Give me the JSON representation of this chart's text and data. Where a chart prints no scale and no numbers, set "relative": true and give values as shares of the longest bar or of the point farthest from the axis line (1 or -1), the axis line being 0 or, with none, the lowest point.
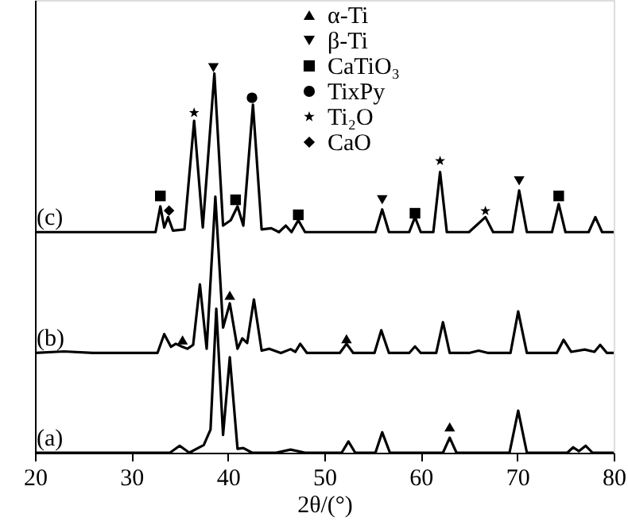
{
  "chart_data": {
    "type": "line",
    "relative": true,
    "xlabel": "2θ/(°)",
    "xlim": [
      20,
      80
    ],
    "xticks": [
      20,
      30,
      40,
      50,
      60,
      70,
      80
    ],
    "grid": false,
    "legend": "top",
    "line_style": "solid",
    "annotations": [
      "(a)",
      "(b)",
      "(c)"
    ],
    "series": [
      {
        "color": "#000000",
        "x": [
          20,
          34,
          35,
          36,
          37.5,
          38.2,
          38.8,
          39.5,
          40.2,
          41,
          41.6,
          42.5,
          45,
          46.5,
          48,
          51.8,
          52.5,
          53.2,
          55.3,
          56,
          56.8,
          62.3,
          63,
          63.7,
          69.2,
          70.1,
          71,
          75.2,
          75.8,
          76.4,
          77.1,
          77.8,
          80
        ],
        "values": [
          0,
          0,
          0.018,
          0,
          0.02,
          0.06,
          0.374,
          0.046,
          0.248,
          0.01,
          0.012,
          0,
          0,
          0.008,
          0,
          0,
          0.029,
          0,
          0,
          0.053,
          0,
          0,
          0.039,
          0,
          0,
          0.109,
          0,
          0,
          0.014,
          0.004,
          0.018,
          0,
          0
        ]
      },
      {
        "color": "#000000",
        "x": [
          20,
          23,
          26,
          32.7,
          33.4,
          34.1,
          34.6,
          35.2,
          35.8,
          36.4,
          37.1,
          37.8,
          38.7,
          39.5,
          40.2,
          41,
          41.5,
          42,
          42.7,
          43.5,
          44.3,
          45.5,
          46.5,
          47,
          47.5,
          48.2,
          51.6,
          52.3,
          53,
          55.2,
          55.9,
          56.7,
          58.8,
          59.4,
          60,
          61.6,
          62.3,
          63,
          65,
          66,
          67,
          69.3,
          70.1,
          71,
          74.1,
          74.8,
          75.6,
          77,
          78,
          78.6,
          79.3,
          80
        ],
        "values": [
          0.259,
          0.263,
          0.259,
          0.259,
          0.308,
          0.275,
          0.283,
          0.276,
          0.27,
          0.28,
          0.437,
          0.27,
          0.665,
          0.325,
          0.388,
          0.27,
          0.297,
          0.285,
          0.398,
          0.265,
          0.27,
          0.259,
          0.269,
          0.262,
          0.283,
          0.259,
          0.259,
          0.283,
          0.259,
          0.259,
          0.318,
          0.259,
          0.259,
          0.276,
          0.259,
          0.259,
          0.339,
          0.259,
          0.259,
          0.265,
          0.259,
          0.259,
          0.367,
          0.259,
          0.259,
          0.293,
          0.262,
          0.268,
          0.262,
          0.28,
          0.259,
          0.259
        ]
      },
      {
        "color": "#000000",
        "x": [
          20,
          32.5,
          33,
          33.4,
          33.8,
          34.3,
          35.5,
          36.5,
          37.4,
          38.6,
          39.5,
          40.3,
          41,
          41.6,
          42.6,
          43.5,
          44.5,
          45.3,
          46,
          46.6,
          47.3,
          48,
          55.3,
          56,
          56.7,
          58.8,
          59.4,
          60,
          61.3,
          62,
          62.7,
          65,
          66.7,
          67.5,
          69.5,
          70.2,
          71,
          73.6,
          74.3,
          75,
          77.4,
          78.1,
          78.8,
          80
        ],
        "values": [
          0.573,
          0.573,
          0.64,
          0.585,
          0.612,
          0.577,
          0.58,
          0.862,
          0.585,
          0.985,
          0.59,
          0.604,
          0.64,
          0.59,
          0.904,
          0.58,
          0.583,
          0.573,
          0.59,
          0.573,
          0.604,
          0.573,
          0.573,
          0.632,
          0.573,
          0.573,
          0.612,
          0.573,
          0.573,
          0.729,
          0.573,
          0.573,
          0.612,
          0.573,
          0.573,
          0.681,
          0.573,
          0.573,
          0.646,
          0.573,
          0.573,
          0.612,
          0.573,
          0.573
        ]
      },
      {
        "type": "scatter",
        "name": "α-Ti",
        "marker": "triangle",
        "color": "#000000",
        "x": [
          35.3,
          40.2,
          52.3,
          63.0
        ],
        "values": [
          0.293,
          0.409,
          0.296,
          0.067
        ]
      },
      {
        "type": "scatter",
        "name": "β-Ti",
        "marker": "triangle_down",
        "color": "#000000",
        "x": [
          38.5,
          56.0,
          70.2
        ],
        "values": [
          1.0,
          0.657,
          0.706
        ]
      },
      {
        "type": "scatter",
        "name": "CaTiO₃",
        "marker": "square",
        "color": "#000000",
        "x": [
          33.0,
          40.8,
          47.3,
          59.4,
          74.3
        ],
        "values": [
          0.667,
          0.657,
          0.618,
          0.622,
          0.667
        ]
      },
      {
        "type": "scatter",
        "name": "TixPy",
        "marker": "circle",
        "color": "#000000",
        "x": [
          42.5
        ],
        "values": [
          0.922
        ]
      },
      {
        "type": "scatter",
        "name": "Ti₂O",
        "marker": "star",
        "color": "#000000",
        "x": [
          36.5,
          62.0,
          66.7
        ],
        "values": [
          0.883,
          0.758,
          0.628
        ]
      },
      {
        "type": "scatter",
        "name": "CaO",
        "marker": "diamond",
        "color": "#000000",
        "x": [
          33.9
        ],
        "values": [
          0.629
        ]
      }
    ]
  }
}
